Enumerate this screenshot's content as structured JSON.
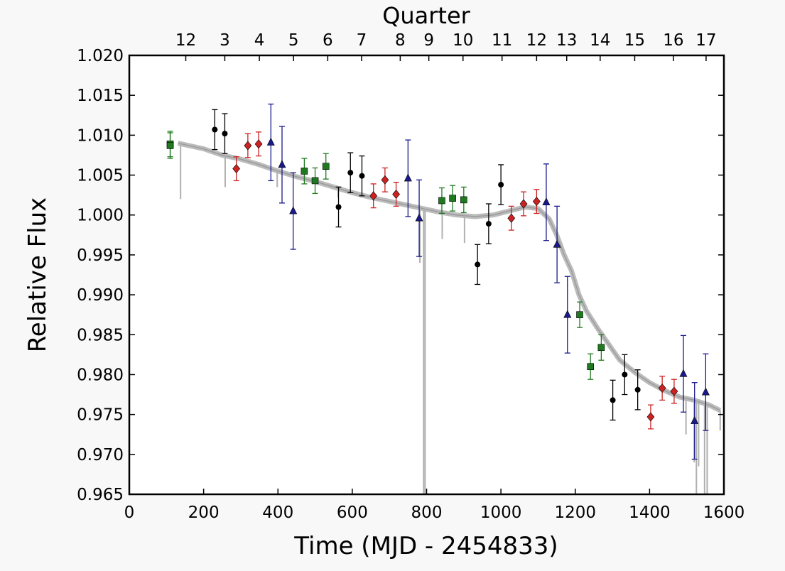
{
  "chart_data": {
    "type": "scatter",
    "xlabel": "Time (MJD - 2454833)",
    "ylabel": "Relative Flux",
    "top_axis_label": "Quarter",
    "xlim": [
      0,
      1600
    ],
    "ylim": [
      0.965,
      1.02
    ],
    "x_ticks": [
      "0",
      "200",
      "400",
      "600",
      "800",
      "1000",
      "1200",
      "1400",
      "1600"
    ],
    "y_ticks": [
      "0.965",
      "0.970",
      "0.975",
      "0.980",
      "0.985",
      "0.990",
      "0.995",
      "1.000",
      "1.005",
      "1.010",
      "1.015",
      "1.020"
    ],
    "quarter_ticks": [
      {
        "label": "12",
        "x": 152
      },
      {
        "label": "3",
        "x": 257
      },
      {
        "label": "4",
        "x": 350
      },
      {
        "label": "5",
        "x": 442
      },
      {
        "label": "6",
        "x": 534
      },
      {
        "label": "7",
        "x": 625
      },
      {
        "label": "8",
        "x": 729
      },
      {
        "label": "9",
        "x": 806
      },
      {
        "label": "10",
        "x": 898
      },
      {
        "label": "11",
        "x": 1003
      },
      {
        "label": "12",
        "x": 1096
      },
      {
        "label": "13",
        "x": 1177
      },
      {
        "label": "14",
        "x": 1267
      },
      {
        "label": "15",
        "x": 1360
      },
      {
        "label": "16",
        "x": 1464
      },
      {
        "label": "17",
        "x": 1552
      }
    ],
    "colors": {
      "lightcurve": "#b0b0b0",
      "black_circle": "#000000",
      "red_diamond": "#cc2222",
      "blue_triangle": "#1a1a8c",
      "green_square": "#1f7a1f"
    },
    "lightcurve": {
      "x": [
        131,
        200,
        250,
        300,
        350,
        400,
        450,
        500,
        550,
        600,
        650,
        700,
        750,
        790,
        830,
        880,
        930,
        980,
        1030,
        1065,
        1100,
        1130,
        1150,
        1170,
        1190,
        1210,
        1230,
        1260,
        1290,
        1320,
        1360,
        1400,
        1440,
        1480,
        1520,
        1560,
        1590
      ],
      "y": [
        1.009,
        1.0083,
        1.0075,
        1.007,
        1.0063,
        1.0055,
        1.0048,
        1.0042,
        1.0035,
        1.0028,
        1.0022,
        1.0017,
        1.0012,
        1.0008,
        1.0004,
        1.0,
        0.9998,
        1.0,
        1.0006,
        1.001,
        1.0008,
        0.9995,
        0.9975,
        0.995,
        0.993,
        0.99,
        0.988,
        0.9858,
        0.9838,
        0.9818,
        0.9803,
        0.979,
        0.978,
        0.9772,
        0.9768,
        0.9762,
        0.9755
      ],
      "dips": [
        {
          "x": 138,
          "y": 1.002
        },
        {
          "x": 258,
          "y": 1.0035
        },
        {
          "x": 398,
          "y": 1.0035
        },
        {
          "x": 562,
          "y": 1.0022
        },
        {
          "x": 782,
          "y": 0.994
        },
        {
          "x": 792,
          "y": 0.965
        },
        {
          "x": 796,
          "y": 0.965
        },
        {
          "x": 842,
          "y": 0.997
        },
        {
          "x": 902,
          "y": 0.9965
        },
        {
          "x": 1498,
          "y": 0.9725
        },
        {
          "x": 1520,
          "y": 0.969
        },
        {
          "x": 1526,
          "y": 0.965
        },
        {
          "x": 1532,
          "y": 0.9685
        },
        {
          "x": 1548,
          "y": 0.965
        },
        {
          "x": 1555,
          "y": 0.965
        },
        {
          "x": 1590,
          "y": 0.973
        }
      ]
    },
    "series": [
      {
        "marker": "circle",
        "x": [
          230,
          257,
          563,
          595,
          626,
          937,
          967,
          1000,
          1301,
          1333,
          1368
        ],
        "y": [
          1.0107,
          1.0102,
          1.001,
          1.0053,
          1.0049,
          0.9938,
          0.9989,
          1.0038,
          0.9768,
          0.98,
          0.9781
        ],
        "err": [
          0.0025,
          0.0025,
          0.0025,
          0.0025,
          0.0025,
          0.0025,
          0.0025,
          0.0025,
          0.0025,
          0.0025,
          0.0025
        ]
      },
      {
        "marker": "diamond",
        "x": [
          288,
          319,
          348,
          657,
          688,
          718,
          1028,
          1061,
          1096,
          1403,
          1434,
          1466
        ],
        "y": [
          1.0058,
          1.0087,
          1.0089,
          1.0024,
          1.0044,
          1.0026,
          0.9996,
          1.0014,
          1.0017,
          0.9747,
          0.9783,
          0.9779
        ],
        "err": [
          0.0015,
          0.0015,
          0.0015,
          0.0015,
          0.0015,
          0.0015,
          0.0015,
          0.0015,
          0.0015,
          0.0015,
          0.0015,
          0.0015
        ]
      },
      {
        "marker": "triangle",
        "x": [
          381,
          411,
          441,
          750,
          780,
          1122,
          1151,
          1179,
          1491,
          1521,
          1551
        ],
        "y": [
          1.0091,
          1.0063,
          1.0005,
          1.0046,
          0.9996,
          1.0016,
          0.9963,
          0.9875,
          0.9801,
          0.9742,
          0.9778
        ],
        "err": [
          0.0048,
          0.0048,
          0.0048,
          0.0048,
          0.0048,
          0.0048,
          0.0048,
          0.0048,
          0.0048,
          0.0048,
          0.0048
        ]
      },
      {
        "marker": "square",
        "x": [
          110,
          110,
          471,
          500,
          529,
          841,
          870,
          900,
          1212,
          1241,
          1270
        ],
        "y": [
          1.0089,
          1.0087,
          1.0055,
          1.0043,
          1.0061,
          1.0018,
          1.0021,
          1.0019,
          0.9875,
          0.981,
          0.9834
        ],
        "err": [
          0.0016,
          0.0016,
          0.0016,
          0.0016,
          0.0016,
          0.0016,
          0.0016,
          0.0016,
          0.0016,
          0.0016,
          0.0016
        ]
      }
    ]
  }
}
